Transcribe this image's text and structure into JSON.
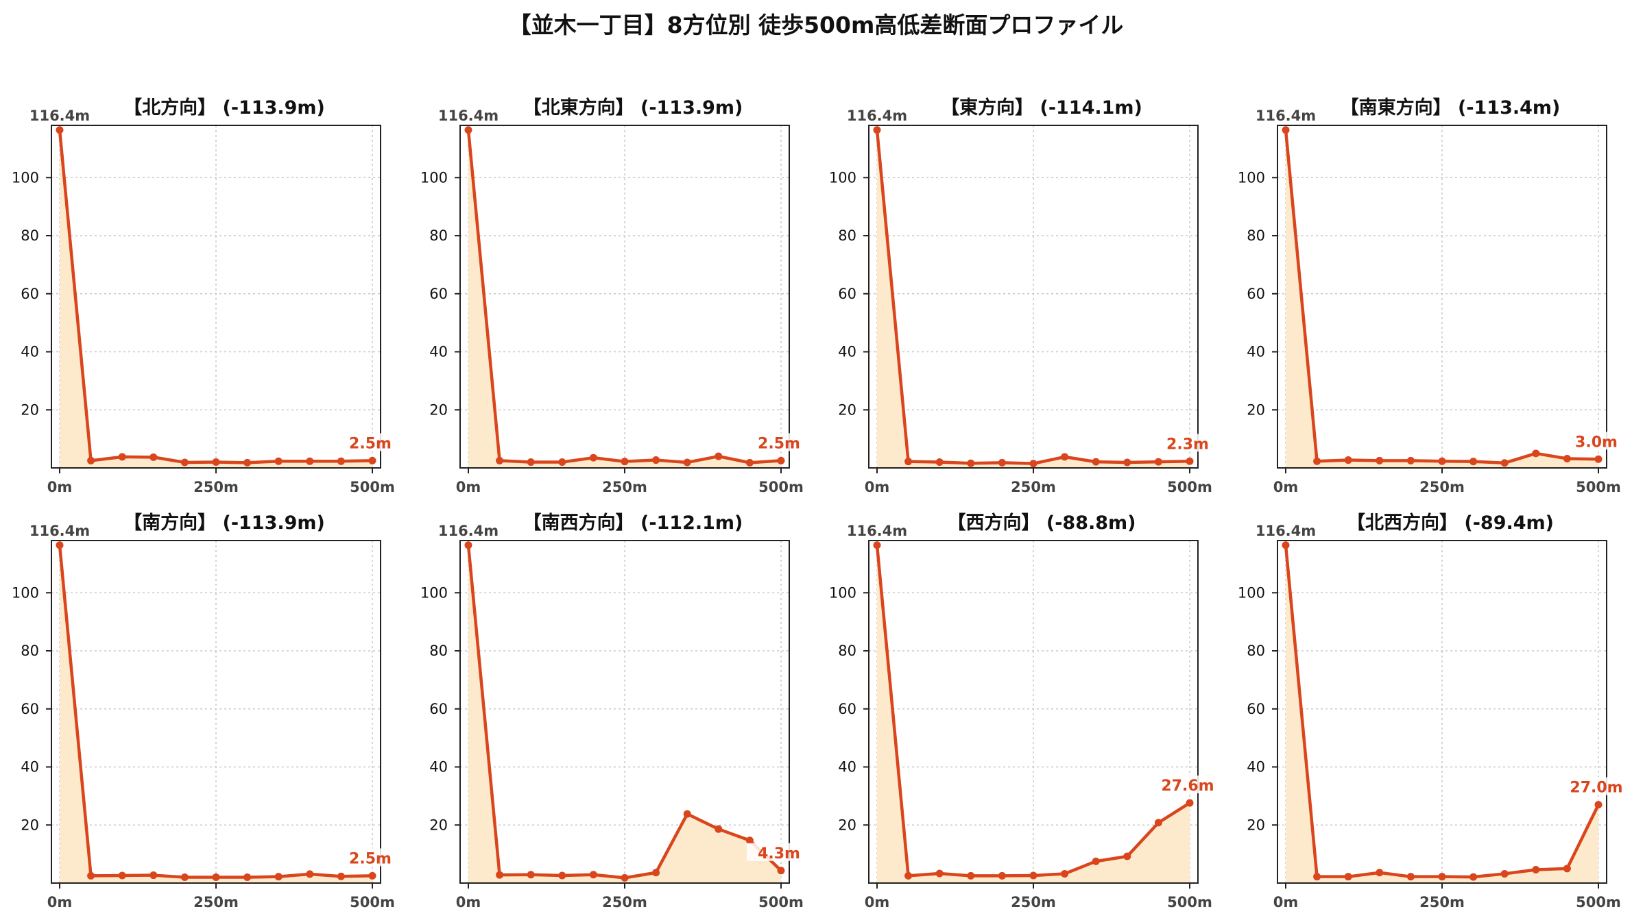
{
  "title": "【並木一丁目】8方位別 徒歩500m高低差断面プロファイル",
  "colors": {
    "line": "#d9451c",
    "fill": "#fde9cb",
    "grid": "#c8c8c8",
    "axis": "#222222",
    "tick": "#444444"
  },
  "chart_data": [
    {
      "type": "area",
      "title": "【北方向】 (-113.9m)",
      "x": [
        0,
        50,
        100,
        150,
        200,
        250,
        300,
        350,
        400,
        450,
        500
      ],
      "y": [
        116.4,
        2.5,
        3.8,
        3.7,
        1.9,
        2.0,
        1.8,
        2.3,
        2.3,
        2.3,
        2.5
      ],
      "x_ticks": [
        "0m",
        "250m",
        "500m"
      ],
      "y_ticks": [
        20,
        40,
        60,
        80,
        100
      ],
      "ylim": [
        0,
        118
      ],
      "start_label": "116.4m",
      "end_label": "2.5m",
      "grid": true
    },
    {
      "type": "area",
      "title": "【北東方向】 (-113.9m)",
      "x": [
        0,
        50,
        100,
        150,
        200,
        250,
        300,
        350,
        400,
        450,
        500
      ],
      "y": [
        116.4,
        2.5,
        2.0,
        2.0,
        3.5,
        2.2,
        2.7,
        1.9,
        4.0,
        1.8,
        2.5
      ],
      "x_ticks": [
        "0m",
        "250m",
        "500m"
      ],
      "y_ticks": [
        20,
        40,
        60,
        80,
        100
      ],
      "ylim": [
        0,
        118
      ],
      "start_label": "116.4m",
      "end_label": "2.5m",
      "grid": true
    },
    {
      "type": "area",
      "title": "【東方向】 (-114.1m)",
      "x": [
        0,
        50,
        100,
        150,
        200,
        250,
        300,
        350,
        400,
        450,
        500
      ],
      "y": [
        116.4,
        2.2,
        2.0,
        1.6,
        1.8,
        1.5,
        3.8,
        2.1,
        1.9,
        2.1,
        2.3
      ],
      "x_ticks": [
        "0m",
        "250m",
        "500m"
      ],
      "y_ticks": [
        20,
        40,
        60,
        80,
        100
      ],
      "ylim": [
        0,
        118
      ],
      "start_label": "116.4m",
      "end_label": "2.3m",
      "grid": true
    },
    {
      "type": "area",
      "title": "【南東方向】 (-113.4m)",
      "x": [
        0,
        50,
        100,
        150,
        200,
        250,
        300,
        350,
        400,
        450,
        500
      ],
      "y": [
        116.4,
        2.3,
        2.7,
        2.5,
        2.5,
        2.3,
        2.2,
        1.7,
        5.0,
        3.2,
        3.0
      ],
      "x_ticks": [
        "0m",
        "250m",
        "500m"
      ],
      "y_ticks": [
        20,
        40,
        60,
        80,
        100
      ],
      "ylim": [
        0,
        118
      ],
      "start_label": "116.4m",
      "end_label": "3.0m",
      "grid": true
    },
    {
      "type": "area",
      "title": "【南方向】 (-113.9m)",
      "x": [
        0,
        50,
        100,
        150,
        200,
        250,
        300,
        350,
        400,
        450,
        500
      ],
      "y": [
        116.4,
        2.5,
        2.6,
        2.7,
        2.0,
        2.0,
        2.0,
        2.2,
        3.1,
        2.3,
        2.5
      ],
      "x_ticks": [
        "0m",
        "250m",
        "500m"
      ],
      "y_ticks": [
        20,
        40,
        60,
        80,
        100
      ],
      "ylim": [
        0,
        118
      ],
      "start_label": "116.4m",
      "end_label": "2.5m",
      "grid": true
    },
    {
      "type": "area",
      "title": "【南西方向】 (-112.1m)",
      "x": [
        0,
        50,
        100,
        150,
        200,
        250,
        300,
        350,
        400,
        450,
        500
      ],
      "y": [
        116.4,
        2.8,
        2.9,
        2.6,
        2.9,
        1.8,
        3.6,
        23.8,
        18.6,
        14.7,
        4.3
      ],
      "x_ticks": [
        "0m",
        "250m",
        "500m"
      ],
      "y_ticks": [
        20,
        40,
        60,
        80,
        100
      ],
      "ylim": [
        0,
        118
      ],
      "start_label": "116.4m",
      "end_label": "4.3m",
      "grid": true
    },
    {
      "type": "area",
      "title": "【西方向】 (-88.8m)",
      "x": [
        0,
        50,
        100,
        150,
        200,
        250,
        300,
        350,
        400,
        450,
        500
      ],
      "y": [
        116.4,
        2.5,
        3.3,
        2.5,
        2.5,
        2.6,
        3.2,
        7.5,
        9.2,
        20.8,
        27.6
      ],
      "x_ticks": [
        "0m",
        "250m",
        "500m"
      ],
      "y_ticks": [
        20,
        40,
        60,
        80,
        100
      ],
      "ylim": [
        0,
        118
      ],
      "start_label": "116.4m",
      "end_label": "27.6m",
      "grid": true
    },
    {
      "type": "area",
      "title": "【北西方向】 (-89.4m)",
      "x": [
        0,
        50,
        100,
        150,
        200,
        250,
        300,
        350,
        400,
        450,
        500
      ],
      "y": [
        116.4,
        2.2,
        2.2,
        3.6,
        2.2,
        2.2,
        2.1,
        3.2,
        4.6,
        5.0,
        27.0
      ],
      "x_ticks": [
        "0m",
        "250m",
        "500m"
      ],
      "y_ticks": [
        20,
        40,
        60,
        80,
        100
      ],
      "ylim": [
        0,
        118
      ],
      "start_label": "116.4m",
      "end_label": "27.0m",
      "grid": true
    }
  ]
}
